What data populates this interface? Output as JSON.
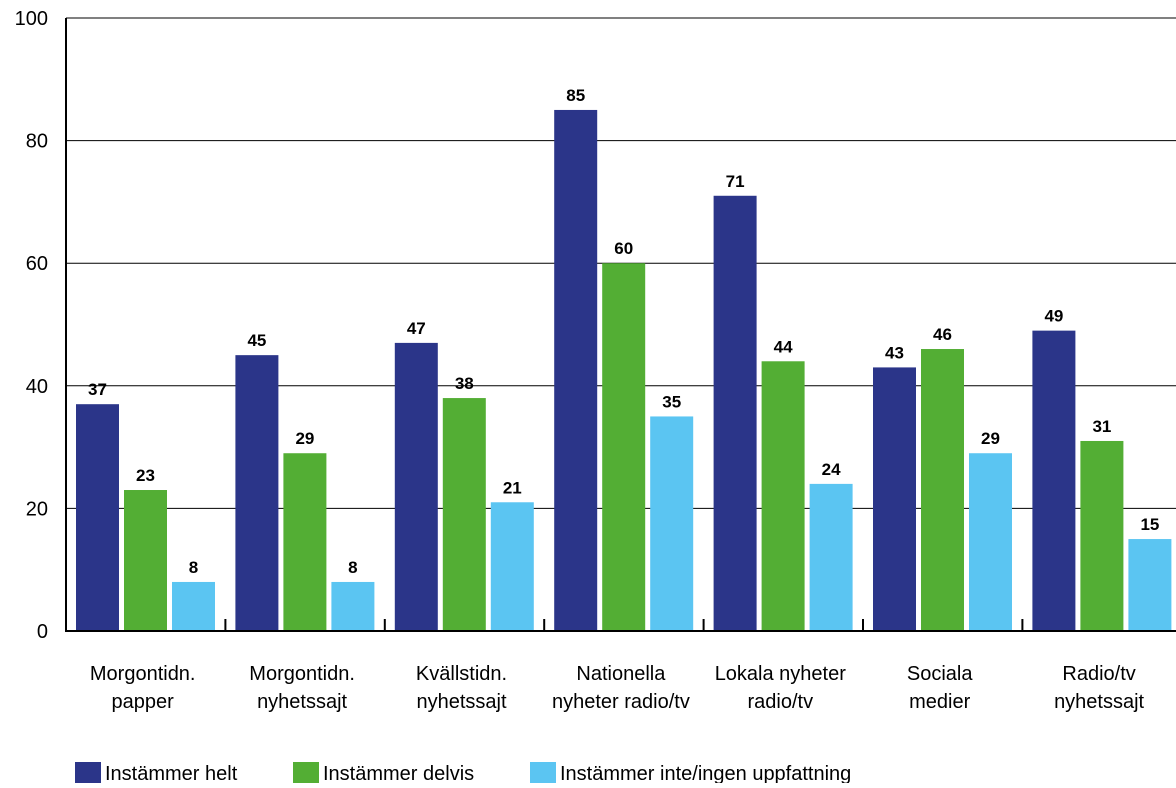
{
  "chart_data": {
    "type": "bar",
    "categories": [
      [
        "Morgontidn.",
        "papper"
      ],
      [
        "Morgontidn.",
        "nyhetssajt"
      ],
      [
        "Kvällstidn.",
        "nyhetssajt"
      ],
      [
        "Nationella",
        "nyheter radio/tv"
      ],
      [
        "Lokala nyheter",
        "radio/tv"
      ],
      [
        "Sociala",
        "medier"
      ],
      [
        "Radio/tv",
        "nyhetssajt"
      ]
    ],
    "series": [
      {
        "name": "Instämmer helt",
        "color": "#2b3589",
        "values": [
          37,
          45,
          47,
          85,
          71,
          43,
          49
        ]
      },
      {
        "name": "Instämmer delvis",
        "color": "#53ae34",
        "values": [
          23,
          29,
          38,
          60,
          44,
          46,
          31
        ]
      },
      {
        "name": "Instämmer inte/ingen uppfattning",
        "color": "#5bc5f2",
        "values": [
          8,
          8,
          21,
          35,
          24,
          29,
          15
        ]
      }
    ],
    "ylim": [
      0,
      100
    ],
    "yticks": [
      0,
      20,
      40,
      60,
      80,
      100
    ],
    "grid": true,
    "legend_position": "bottom-left",
    "title": "",
    "xlabel": "",
    "ylabel": ""
  }
}
